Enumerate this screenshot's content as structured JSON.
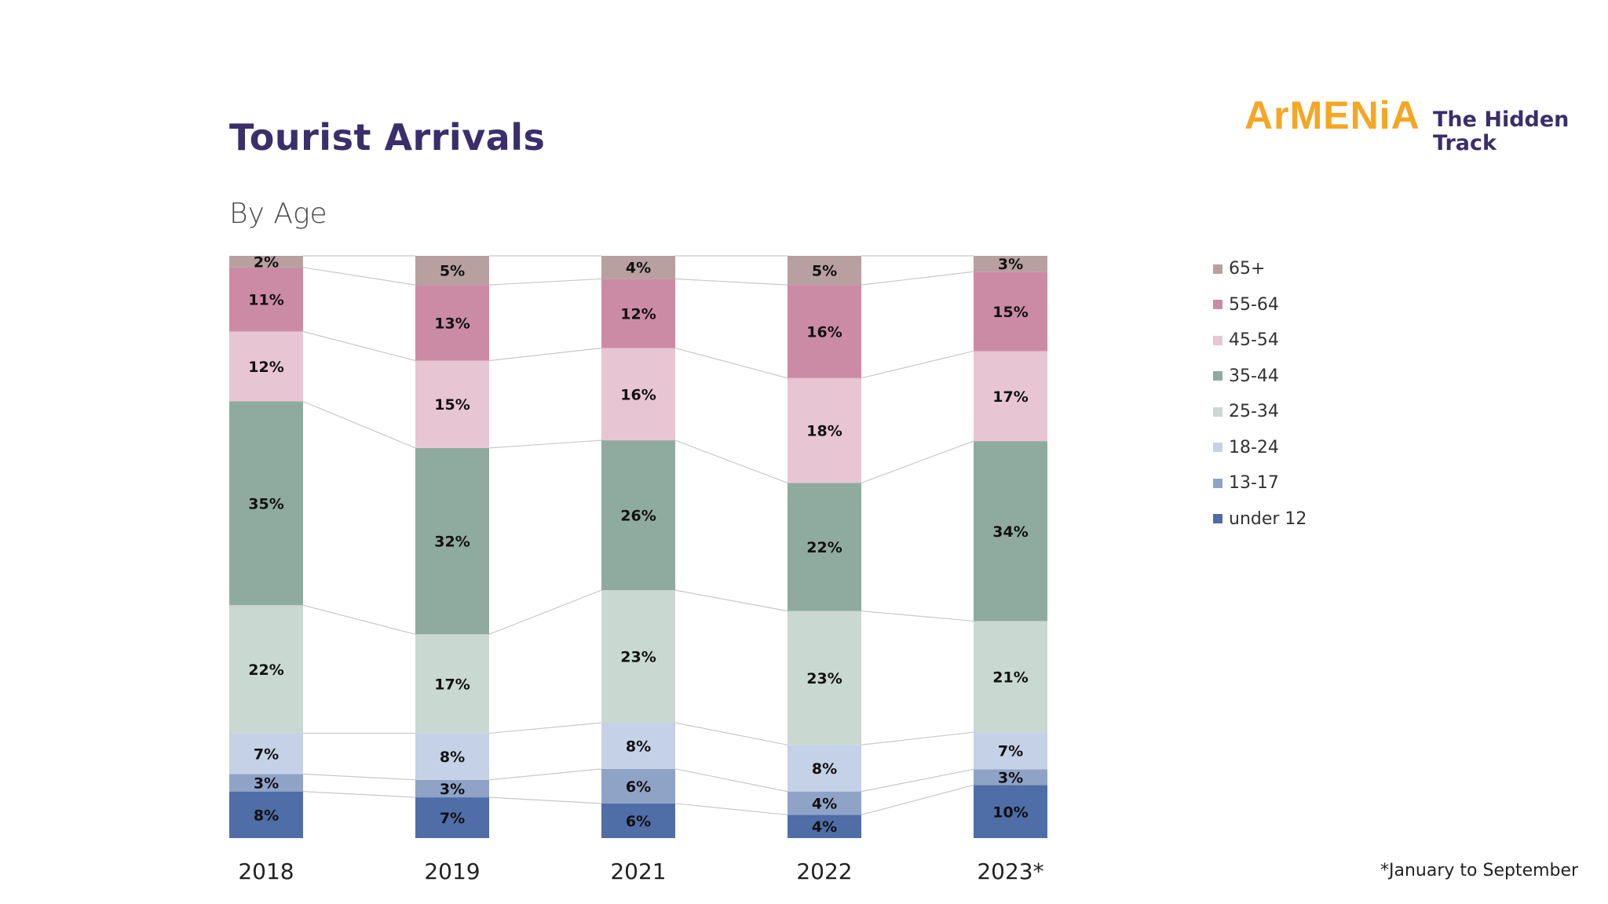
{
  "page": {
    "title": "Tourist Arrivals",
    "subtitle": "By Age",
    "footnote": "*January to September"
  },
  "logo": {
    "main": "ArMENiA",
    "sub_line1": "The Hidden",
    "sub_line2": "Track"
  },
  "chart_data": {
    "type": "bar",
    "stacked": true,
    "percent": true,
    "categories": [
      "2018",
      "2019",
      "2021",
      "2022",
      "2023*"
    ],
    "series": [
      {
        "name": "under 12",
        "color": "#4f6da6",
        "values": [
          8,
          7,
          6,
          4,
          10
        ]
      },
      {
        "name": "13-17",
        "color": "#8fa3c7",
        "values": [
          3,
          3,
          6,
          4,
          3
        ]
      },
      {
        "name": "18-24",
        "color": "#c5d1e6",
        "values": [
          7,
          8,
          8,
          8,
          7
        ]
      },
      {
        "name": "25-34",
        "color": "#c9d9d2",
        "values": [
          22,
          17,
          23,
          23,
          21
        ]
      },
      {
        "name": "35-44",
        "color": "#8fab9f",
        "values": [
          35,
          32,
          26,
          22,
          34
        ]
      },
      {
        "name": "45-54",
        "color": "#e8c5d3",
        "values": [
          12,
          15,
          16,
          18,
          17
        ]
      },
      {
        "name": "55-64",
        "color": "#cc8ba5",
        "values": [
          11,
          13,
          12,
          16,
          15
        ]
      },
      {
        "name": "65+",
        "color": "#b8a0a0",
        "values": [
          2,
          5,
          4,
          5,
          3
        ]
      }
    ],
    "legend_position": "right",
    "legend_order": [
      "65+",
      "55-64",
      "45-54",
      "35-44",
      "25-34",
      "18-24",
      "13-17",
      "under 12"
    ],
    "grid": false,
    "connector_lines": true
  }
}
